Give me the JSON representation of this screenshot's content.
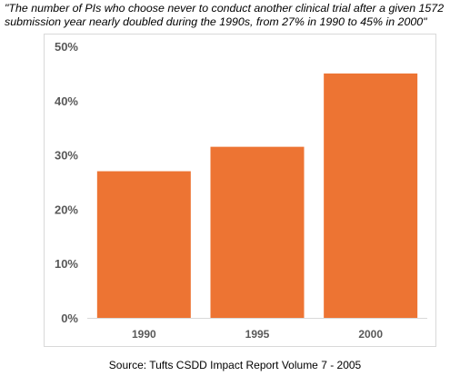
{
  "caption": "\"The number of PIs who choose never to conduct another clinical trial after a given 1572 submission year nearly doubled during the 1990s, from 27% in 1990 to 45% in 2000\"",
  "source": "Source: Tufts CSDD Impact Report Volume 7 - 2005",
  "colors": {
    "bar": "#ED7433",
    "gridline": "#d9d9d9",
    "tick_text": "#595959"
  },
  "chart_data": {
    "type": "bar",
    "categories": [
      "1990",
      "1995",
      "2000"
    ],
    "values": [
      27,
      31.5,
      45
    ],
    "title": "",
    "xlabel": "",
    "ylabel": "",
    "ylim": [
      0,
      50
    ],
    "y_ticks": [
      0,
      10,
      20,
      30,
      40,
      50
    ],
    "y_tick_labels": [
      "0%",
      "10%",
      "20%",
      "30%",
      "40%",
      "50%"
    ],
    "grid": false,
    "legend": "none"
  }
}
